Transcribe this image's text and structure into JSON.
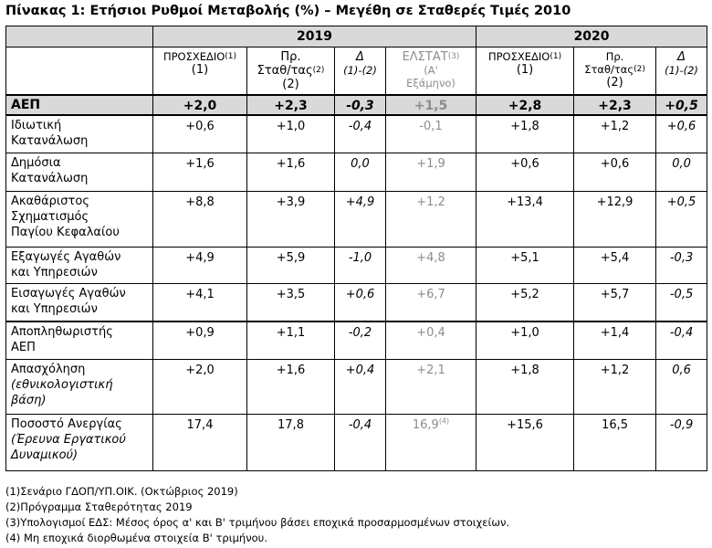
{
  "title": "Πίνακας 1: Ετήσιοι Ρυθμοί Μεταβολής (%) – Μεγέθη σε Σταθερές Τιμές 2010",
  "years": [
    "2019",
    "2020"
  ],
  "headers_2019": {
    "col1": {
      "line1": "ΠΡΟΣΧΕΔΙΟ",
      "sup": "(1)",
      "line2": "(1)"
    },
    "col2": {
      "line1": "Πρ.",
      "line2": "Σταθ/τας",
      "sup": "(2)",
      "line3": "(2)"
    },
    "col3": {
      "line1": "Δ",
      "line2": "(1)-(2)"
    },
    "col4": {
      "line1": "ΕΛΣΤΑΤ",
      "sup": "(3)",
      "line2": "(Α'",
      "line3": "Εξάμηνο)"
    }
  },
  "headers_2020": {
    "col1": {
      "line1": "ΠΡΟΣΧΕΔΙΟ",
      "sup": "(1)",
      "line2": "(1)"
    },
    "col2": {
      "line1": "Πρ.",
      "line2": "Σταθ/τας",
      "sup": "(2)",
      "line3": "(2)"
    },
    "col3": {
      "line1": "Δ",
      "line2": "(1)-(2)"
    }
  },
  "rows": [
    {
      "label": "ΑΕΠ",
      "sub": "",
      "values": [
        "+2,0",
        "+2,3",
        "-0,3",
        "+1,5",
        "+2,8",
        "+2,3",
        "+0,5"
      ]
    },
    {
      "label": "Ιδιωτική\nΚατανάλωση",
      "sub": "",
      "values": [
        "+0,6",
        "+1,0",
        "-0,4",
        "-0,1",
        "+1,8",
        "+1,2",
        "+0,6"
      ]
    },
    {
      "label": "Δημόσια\nΚατανάλωση",
      "sub": "",
      "values": [
        "+1,6",
        "+1,6",
        "0,0",
        "+1,9",
        "+0,6",
        "+0,6",
        "0,0"
      ]
    },
    {
      "label": "Ακαθάριστος\nΣχηματισμός\nΠαγίου Κεφαλαίου",
      "sub": "",
      "values": [
        "+8,8",
        "+3,9",
        "+4,9",
        "+1,2",
        "+13,4",
        "+12,9",
        "+0,5"
      ]
    },
    {
      "label": "Εξαγωγές Αγαθών\nκαι Υπηρεσιών",
      "sub": "",
      "values": [
        "+4,9",
        "+5,9",
        "-1,0",
        "+4,8",
        "+5,1",
        "+5,4",
        "-0,3"
      ]
    },
    {
      "label": "Εισαγωγές Αγαθών\nκαι Υπηρεσιών",
      "sub": "",
      "values": [
        "+4,1",
        "+3,5",
        "+0,6",
        "+6,7",
        "+5,2",
        "+5,7",
        "-0,5"
      ]
    },
    {
      "label": "Αποπληθωριστής\nΑΕΠ",
      "sub": "",
      "values": [
        "+0,9",
        "+1,1",
        "-0,2",
        "+0,4",
        "+1,0",
        "+1,4",
        "-0,4"
      ]
    },
    {
      "label": "Απασχόληση",
      "sub": "(εθνικολογιστική\nβάση)",
      "values": [
        "+2,0",
        "+1,6",
        "+0,4",
        "+2,1",
        "+1,8",
        "+1,2",
        "0,6"
      ]
    },
    {
      "label": "Ποσοστό Ανεργίας",
      "sub": "(Έρευνα Εργατικού\nΔυναμικού)",
      "values": [
        "17,4",
        "17,8",
        "-0,4",
        "16,9",
        "+15,6",
        "16,5",
        "-0,9"
      ],
      "sup4": "(4)"
    }
  ],
  "notes": [
    "(1)Σενάριο ΓΔΟΠ/ΥΠ.ΟΙΚ. (Οκτώβριος 2019)",
    "(2)Πρόγραμμα Σταθερότητας 2019",
    "(3)Υπολογισμοί ΕΔΣ: Μέσος όρος α' και Β' τριμήνου βάσει εποχικά προσαρμοσμένων στοιχείων.",
    "(4) Μη εποχικά διορθωμένα στοιχεία Β' τριμήνου."
  ]
}
